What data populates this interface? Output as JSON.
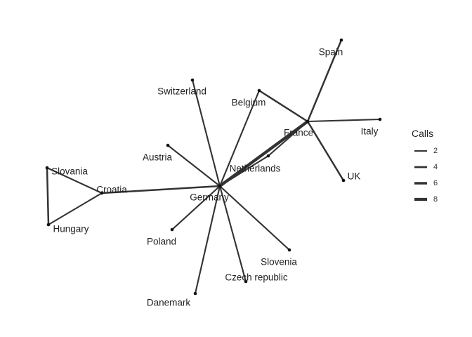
{
  "chart_data": {
    "type": "network",
    "nodes": [
      {
        "id": "Spain",
        "label": "Spain"
      },
      {
        "id": "Switzerland",
        "label": "Switzerland"
      },
      {
        "id": "Belgium",
        "label": "Belgium"
      },
      {
        "id": "France",
        "label": "France"
      },
      {
        "id": "Italy",
        "label": "Italy"
      },
      {
        "id": "Austria",
        "label": "Austria"
      },
      {
        "id": "Netherlands",
        "label": "Netherlands"
      },
      {
        "id": "UK",
        "label": "UK"
      },
      {
        "id": "Slovania",
        "label": "Slovania"
      },
      {
        "id": "Croatia",
        "label": "Croatia"
      },
      {
        "id": "Germany",
        "label": "Germany"
      },
      {
        "id": "Hungary",
        "label": "Hungary"
      },
      {
        "id": "Poland",
        "label": "Poland"
      },
      {
        "id": "Slovenia",
        "label": "Slovenia"
      },
      {
        "id": "Czech republic",
        "label": "Czech republic"
      },
      {
        "id": "Danemark",
        "label": "Danemark"
      }
    ],
    "edges": [
      {
        "source": "France",
        "target": "Spain",
        "calls": 3
      },
      {
        "source": "France",
        "target": "Belgium",
        "calls": 3
      },
      {
        "source": "France",
        "target": "Italy",
        "calls": 2
      },
      {
        "source": "France",
        "target": "UK",
        "calls": 3
      },
      {
        "source": "France",
        "target": "Netherlands",
        "calls": 2
      },
      {
        "source": "France",
        "target": "Germany",
        "calls": 8
      },
      {
        "source": "Germany",
        "target": "Belgium",
        "calls": 2
      },
      {
        "source": "Germany",
        "target": "Switzerland",
        "calls": 2
      },
      {
        "source": "Germany",
        "target": "Austria",
        "calls": 2
      },
      {
        "source": "Germany",
        "target": "Croatia",
        "calls": 3
      },
      {
        "source": "Germany",
        "target": "Poland",
        "calls": 2
      },
      {
        "source": "Germany",
        "target": "Slovenia",
        "calls": 2
      },
      {
        "source": "Germany",
        "target": "Czech republic",
        "calls": 2
      },
      {
        "source": "Germany",
        "target": "Danemark",
        "calls": 2
      },
      {
        "source": "Germany",
        "target": "Netherlands",
        "calls": 2
      },
      {
        "source": "Croatia",
        "target": "Slovania",
        "calls": 2
      },
      {
        "source": "Croatia",
        "target": "Hungary",
        "calls": 2
      },
      {
        "source": "Slovania",
        "target": "Hungary",
        "calls": 3
      }
    ],
    "legend": {
      "title": "Calls",
      "entries": [
        {
          "label": "2",
          "value": 2
        },
        {
          "label": "4",
          "value": 4
        },
        {
          "label": "6",
          "value": 6
        },
        {
          "label": "8",
          "value": 8
        }
      ],
      "placement": "right"
    },
    "colors": {
      "edge": "#333333",
      "node": "#111111",
      "text": "#222222"
    }
  }
}
